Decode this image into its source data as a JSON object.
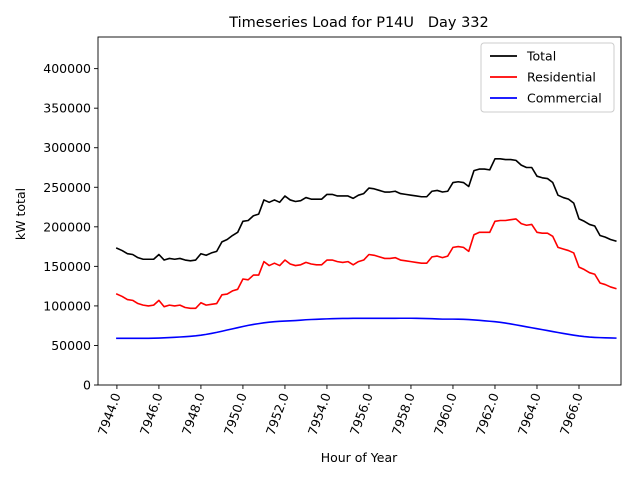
{
  "chart_data": {
    "type": "line",
    "title": "Timeseries Load for P14U   Day 332",
    "xlabel": "Hour of Year",
    "ylabel": "kW total",
    "xlim": [
      7943.1,
      7968.0
    ],
    "ylim": [
      0,
      440000
    ],
    "xticks": [
      7944,
      7946,
      7948,
      7950,
      7952,
      7954,
      7956,
      7958,
      7960,
      7962,
      7964,
      7966
    ],
    "xtick_labels": [
      "7944.0",
      "7946.0",
      "7948.0",
      "7950.0",
      "7952.0",
      "7954.0",
      "7956.0",
      "7958.0",
      "7960.0",
      "7962.0",
      "7964.0",
      "7966.0"
    ],
    "yticks": [
      0,
      50000,
      100000,
      150000,
      200000,
      250000,
      300000,
      350000,
      400000
    ],
    "ytick_labels": [
      "0",
      "50000",
      "100000",
      "150000",
      "200000",
      "250000",
      "300000",
      "350000",
      "400000"
    ],
    "legend_position": "top-right",
    "x": [
      7944.0,
      7944.25,
      7944.5,
      7944.75,
      7945.0,
      7945.25,
      7945.5,
      7945.75,
      7946.0,
      7946.25,
      7946.5,
      7946.75,
      7947.0,
      7947.25,
      7947.5,
      7947.75,
      7948.0,
      7948.25,
      7948.5,
      7948.75,
      7949.0,
      7949.25,
      7949.5,
      7949.75,
      7950.0,
      7950.25,
      7950.5,
      7950.75,
      7951.0,
      7951.25,
      7951.5,
      7951.75,
      7952.0,
      7952.25,
      7952.5,
      7952.75,
      7953.0,
      7953.25,
      7953.5,
      7953.75,
      7954.0,
      7954.25,
      7954.5,
      7954.75,
      7955.0,
      7955.25,
      7955.5,
      7955.75,
      7956.0,
      7956.25,
      7956.5,
      7956.75,
      7957.0,
      7957.25,
      7957.5,
      7957.75,
      7958.0,
      7958.25,
      7958.5,
      7958.75,
      7959.0,
      7959.25,
      7959.5,
      7959.75,
      7960.0,
      7960.25,
      7960.5,
      7960.75,
      7961.0,
      7961.25,
      7961.5,
      7961.75,
      7962.0,
      7962.25,
      7962.5,
      7962.75,
      7963.0,
      7963.25,
      7963.5,
      7963.75,
      7964.0,
      7964.25,
      7964.5,
      7964.75,
      7965.0,
      7965.25,
      7965.5,
      7965.75,
      7966.0,
      7966.25,
      7966.5,
      7966.75,
      7967.0,
      7967.25,
      7967.5,
      7967.75
    ],
    "series": [
      {
        "name": "Total",
        "color": "#000000",
        "values": [
          173000,
          170000,
          166000,
          165000,
          161000,
          159000,
          159000,
          159000,
          165000,
          158000,
          160000,
          159000,
          160000,
          158000,
          157000,
          158000,
          166000,
          164000,
          167000,
          169000,
          181000,
          184000,
          189000,
          193000,
          207000,
          208000,
          214000,
          216000,
          234000,
          231000,
          234000,
          231000,
          239000,
          234000,
          232000,
          233000,
          237000,
          235000,
          235000,
          235000,
          241000,
          241000,
          239000,
          239000,
          239000,
          236000,
          240000,
          242000,
          249000,
          248000,
          246000,
          244000,
          244000,
          245000,
          242000,
          241000,
          240000,
          239000,
          238000,
          238000,
          245000,
          246000,
          244000,
          245000,
          256000,
          257000,
          256000,
          251000,
          271000,
          273000,
          273000,
          272000,
          286000,
          286000,
          285000,
          285000,
          284000,
          278000,
          275000,
          275000,
          264000,
          262000,
          261000,
          256000,
          240000,
          237000,
          235000,
          230000,
          210000,
          207000,
          203000,
          201000,
          189000,
          187000,
          184000,
          182000
        ]
      },
      {
        "name": "Residential",
        "color": "#ff0000",
        "values": [
          115000,
          112000,
          108000,
          107000,
          103000,
          101000,
          100000,
          101000,
          107000,
          99000,
          101000,
          100000,
          101000,
          98000,
          97000,
          97000,
          104000,
          101000,
          102000,
          103000,
          114000,
          115000,
          119000,
          121000,
          134000,
          133000,
          139000,
          139000,
          156000,
          151000,
          154000,
          151000,
          158000,
          153000,
          151000,
          152000,
          155000,
          153000,
          152000,
          152000,
          158000,
          158000,
          156000,
          155000,
          156000,
          152000,
          156000,
          158000,
          165000,
          164000,
          162000,
          160000,
          160000,
          161000,
          158000,
          157000,
          156000,
          155000,
          154000,
          154000,
          162000,
          163000,
          161000,
          163000,
          174000,
          175000,
          174000,
          169000,
          190000,
          193000,
          193000,
          193000,
          207000,
          208000,
          208000,
          209000,
          210000,
          204000,
          202000,
          203000,
          193000,
          192000,
          192000,
          188000,
          174000,
          172000,
          170000,
          167000,
          149000,
          146000,
          142000,
          140000,
          129000,
          127000,
          124000,
          122000
        ]
      },
      {
        "name": "Commercial",
        "color": "#0000ff",
        "values": [
          59000,
          59000,
          59000,
          59000,
          59000,
          59000,
          59000,
          59200,
          59400,
          59700,
          60000,
          60300,
          60700,
          61100,
          61600,
          62200,
          63000,
          64000,
          65200,
          66500,
          68000,
          69500,
          71000,
          72500,
          74000,
          75400,
          76600,
          77600,
          78600,
          79400,
          80000,
          80500,
          80800,
          81100,
          81500,
          82000,
          82500,
          82800,
          83100,
          83400,
          83600,
          83800,
          84000,
          84100,
          84200,
          84300,
          84300,
          84300,
          84300,
          84300,
          84300,
          84300,
          84300,
          84300,
          84400,
          84400,
          84400,
          84300,
          84200,
          84000,
          83800,
          83500,
          83300,
          83300,
          83300,
          83200,
          83000,
          82700,
          82300,
          81800,
          81200,
          80600,
          80000,
          79300,
          78300,
          77200,
          76000,
          74800,
          73600,
          72400,
          71200,
          70000,
          68800,
          67600,
          66400,
          65200,
          64100,
          63000,
          62000,
          61200,
          60600,
          60200,
          59900,
          59700,
          59500,
          59300
        ]
      }
    ]
  }
}
